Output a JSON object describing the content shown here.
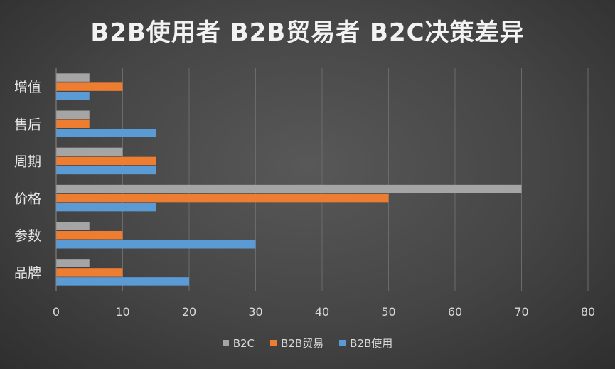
{
  "chart_data": {
    "type": "bar",
    "orientation": "horizontal",
    "title": "B2B使用者 B2B贸易者 B2C决策差异",
    "categories": [
      "品牌",
      "参数",
      "价格",
      "周期",
      "售后",
      "增值"
    ],
    "series": [
      {
        "name": "B2B使用",
        "color": "#5b9bd5",
        "values": [
          20,
          30,
          15,
          15,
          15,
          5
        ]
      },
      {
        "name": "B2B贸易",
        "color": "#ed7d31",
        "values": [
          10,
          10,
          50,
          15,
          5,
          10
        ]
      },
      {
        "name": "B2C",
        "color": "#a5a5a5",
        "values": [
          5,
          5,
          70,
          10,
          5,
          5
        ]
      }
    ],
    "xlim": [
      0,
      80
    ],
    "xticks": [
      "0",
      "10",
      "20",
      "30",
      "40",
      "50",
      "60",
      "70",
      "80"
    ],
    "grid": true,
    "legend_position": "bottom",
    "legend_order": [
      "B2C",
      "B2B贸易",
      "B2B使用"
    ]
  }
}
